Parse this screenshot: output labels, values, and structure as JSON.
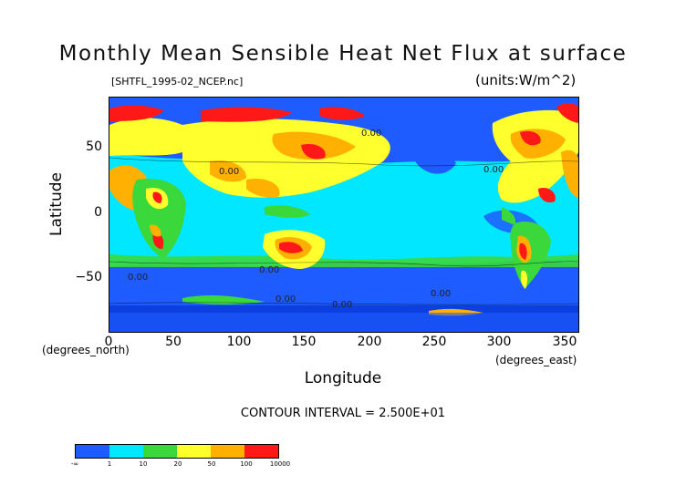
{
  "title": "Monthly Mean Sensible Heat Net Flux at surface",
  "file_label": "[SHTFL_1995-02_NCEP.nc]",
  "units_label": "(units:W/m^2)",
  "axes": {
    "y_label": "Latitude",
    "y_units": "(degrees_north)",
    "y_ticks": [
      "50",
      "0",
      "−50"
    ],
    "x_label": "Longitude",
    "x_units": "(degrees_east)",
    "x_ticks": [
      "0",
      "50",
      "100",
      "150",
      "200",
      "250",
      "300",
      "350"
    ]
  },
  "contour_text": "CONTOUR INTERVAL = 2.500E+01",
  "contour_labels": [
    "0.00",
    "0.00",
    "0.00",
    "0.00",
    "0.00",
    "0.00",
    "0.00",
    "0.00"
  ],
  "colorbar": {
    "labels": [
      "-∞",
      "1",
      "10",
      "20",
      "50",
      "100",
      "10000"
    ],
    "colors": [
      "#1f5cff",
      "#00e7ff",
      "#3bd83b",
      "#ffff2e",
      "#ffb000",
      "#ff1818"
    ]
  }
}
